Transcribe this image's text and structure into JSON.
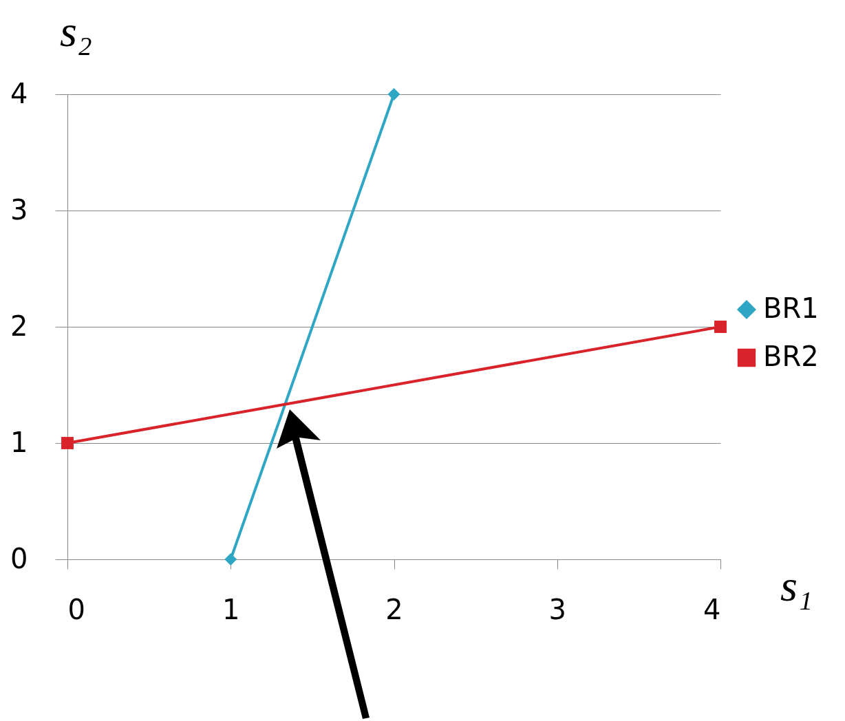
{
  "chart_data": {
    "type": "line",
    "xlabel": "s₁",
    "ylabel": "s₂",
    "xlim": [
      0,
      4
    ],
    "ylim": [
      0,
      4
    ],
    "xticks": [
      0,
      1,
      2,
      3,
      4
    ],
    "yticks": [
      0,
      1,
      2,
      3,
      4
    ],
    "grid": "y",
    "legend": "right",
    "series": [
      {
        "name": "BR1",
        "color": "#2ea6c4",
        "marker": "diamond",
        "x": [
          1,
          2
        ],
        "values": [
          0,
          4
        ]
      },
      {
        "name": "BR2",
        "color": "#d9232a",
        "marker": "square",
        "x": [
          0,
          4
        ],
        "values": [
          1,
          2
        ]
      }
    ]
  }
}
